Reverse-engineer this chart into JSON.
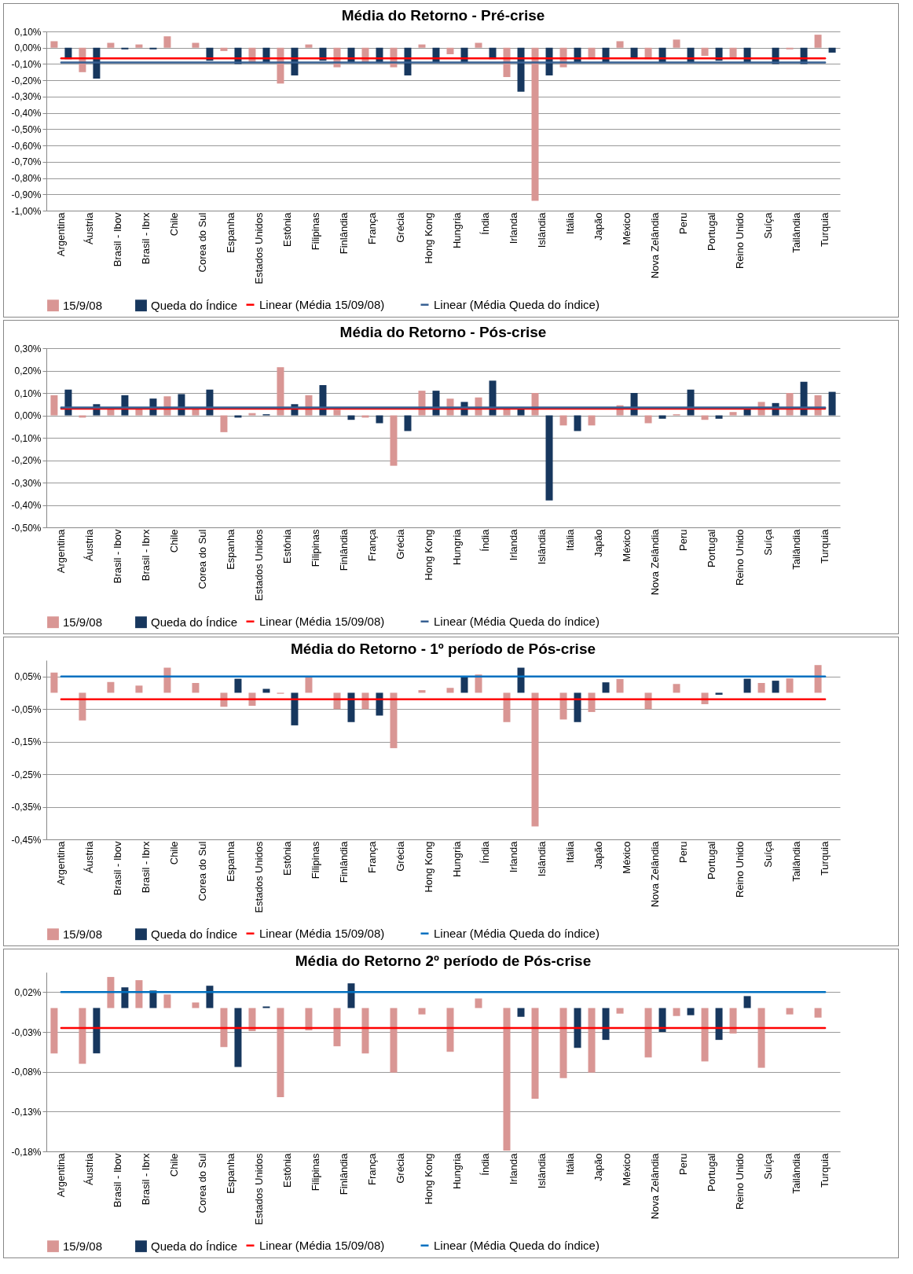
{
  "chart_data": [
    {
      "type": "bar",
      "title": "Média do Retorno - Pré-crise",
      "categories": [
        "Argentina",
        "Áustria",
        "Brasil - Ibov",
        "Brasil - Ibrx",
        "Chile",
        "Corea do Sul",
        "Espanha",
        "Estados Unidos",
        "Estônia",
        "Filipinas",
        "Finlândia",
        "França",
        "Grécia",
        "Hong Kong",
        "Hungria",
        "Índia",
        "Irlanda",
        "Islândia",
        "Itália",
        "Japão",
        "México",
        "Nova Zelândia",
        "Peru",
        "Portugal",
        "Reino Unido",
        "Suíça",
        "Tailândia",
        "Turquia"
      ],
      "series": [
        {
          "name": "15/9/08",
          "color": "#d99694",
          "values": [
            0.04,
            -0.15,
            0.03,
            0.02,
            0.07,
            0.03,
            -0.02,
            -0.09,
            -0.22,
            0.02,
            -0.12,
            -0.09,
            -0.12,
            0.02,
            -0.04,
            0.03,
            -0.18,
            -0.94,
            -0.12,
            -0.07,
            0.04,
            -0.07,
            0.05,
            -0.05,
            -0.06,
            0,
            -0.01,
            0.08
          ]
        },
        {
          "name": "Queda do Índice",
          "color": "#17375e",
          "values": [
            -0.07,
            -0.19,
            -0.01,
            -0.01,
            0,
            -0.08,
            -0.1,
            -0.09,
            -0.17,
            -0.08,
            -0.09,
            -0.09,
            -0.17,
            -0.09,
            -0.09,
            -0.07,
            -0.27,
            -0.17,
            -0.09,
            -0.09,
            -0.06,
            -0.09,
            -0.09,
            -0.08,
            -0.09,
            -0.1,
            -0.1,
            -0.03
          ]
        },
        {
          "name": "Linear (Média 15/09/08)",
          "type": "line",
          "color": "#ff0000",
          "values": [
            -0.065,
            -0.065,
            -0.065,
            -0.065,
            -0.065,
            -0.065,
            -0.065,
            -0.065,
            -0.065,
            -0.065,
            -0.065,
            -0.065,
            -0.065,
            -0.065,
            -0.065,
            -0.065,
            -0.065,
            -0.065,
            -0.065,
            -0.065,
            -0.065,
            -0.065,
            -0.065,
            -0.065,
            -0.065,
            -0.065,
            -0.065,
            -0.065
          ]
        },
        {
          "name": "Linear (Média Queda do índice)",
          "type": "line",
          "color": "#376092",
          "values": [
            -0.09,
            -0.09,
            -0.09,
            -0.09,
            -0.09,
            -0.09,
            -0.09,
            -0.09,
            -0.09,
            -0.09,
            -0.09,
            -0.09,
            -0.09,
            -0.09,
            -0.09,
            -0.09,
            -0.09,
            -0.09,
            -0.09,
            -0.09,
            -0.09,
            -0.09,
            -0.09,
            -0.09,
            -0.09,
            -0.09,
            -0.09,
            -0.09
          ]
        }
      ],
      "ylim": [
        -1.0,
        0.1
      ],
      "yticks": [
        {
          "value": 0.1,
          "label": "0,10%"
        },
        {
          "value": 0,
          "label": "0,00%"
        },
        {
          "value": -0.1,
          "label": "-0,10%"
        },
        {
          "value": -0.2,
          "label": "-0,20%"
        },
        {
          "value": -0.3,
          "label": "-0,30%"
        },
        {
          "value": -0.4,
          "label": "-0,40%"
        },
        {
          "value": -0.5,
          "label": "-0,50%"
        },
        {
          "value": -0.6,
          "label": "-0,60%"
        },
        {
          "value": -0.7,
          "label": "-0,70%"
        },
        {
          "value": -0.8,
          "label": "-0,80%"
        },
        {
          "value": -0.9,
          "label": "-0,90%"
        },
        {
          "value": -1.0,
          "label": "-1,00%"
        }
      ],
      "grid": "y",
      "legend": "bottom"
    },
    {
      "type": "bar",
      "title": "Média do Retorno - Pós-crise",
      "categories": [
        "Argentina",
        "Áustria",
        "Brasil - Ibov",
        "Brasil - Ibrx",
        "Chile",
        "Corea do Sul",
        "Espanha",
        "Estados Unidos",
        "Estônia",
        "Filipinas",
        "Finlândia",
        "França",
        "Grécia",
        "Hong Kong",
        "Hungria",
        "Índia",
        "Irlanda",
        "Islândia",
        "Itália",
        "Japão",
        "México",
        "Nova Zelândia",
        "Peru",
        "Portugal",
        "Reino Unido",
        "Suíça",
        "Tailândia",
        "Turquia"
      ],
      "series": [
        {
          "name": "15/9/08",
          "color": "#d99694",
          "values": [
            0.09,
            -0.01,
            0.03,
            0.03,
            0.085,
            0.03,
            -0.075,
            0.01,
            0.215,
            0.09,
            0.025,
            -0.01,
            -0.225,
            0.11,
            0.075,
            0.08,
            0.03,
            0.1,
            -0.045,
            -0.045,
            0.045,
            -0.035,
            0.005,
            -0.02,
            0.015,
            0.06,
            0.1,
            0.09
          ]
        },
        {
          "name": "Queda do Índice",
          "color": "#17375e",
          "values": [
            0.115,
            0.05,
            0.09,
            0.075,
            0.095,
            0.115,
            -0.01,
            0.005,
            0.05,
            0.135,
            -0.02,
            -0.035,
            -0.07,
            0.11,
            0.06,
            0.155,
            0.03,
            -0.38,
            -0.07,
            0,
            0.1,
            -0.015,
            0.115,
            -0.015,
            0.03,
            0.055,
            0.15,
            0.105
          ]
        },
        {
          "name": "Linear (Média 15/09/08)",
          "type": "line",
          "color": "#ff0000",
          "values": [
            0.03,
            0.03,
            0.03,
            0.03,
            0.03,
            0.03,
            0.03,
            0.03,
            0.03,
            0.03,
            0.03,
            0.03,
            0.03,
            0.03,
            0.03,
            0.03,
            0.03,
            0.03,
            0.03,
            0.03,
            0.03,
            0.03,
            0.03,
            0.03,
            0.03,
            0.03,
            0.03,
            0.03
          ]
        },
        {
          "name": "Linear (Média Queda do índice)",
          "type": "line",
          "color": "#376092",
          "values": [
            0.035,
            0.035,
            0.035,
            0.035,
            0.035,
            0.035,
            0.035,
            0.035,
            0.035,
            0.035,
            0.035,
            0.035,
            0.035,
            0.035,
            0.035,
            0.035,
            0.035,
            0.035,
            0.035,
            0.035,
            0.035,
            0.035,
            0.035,
            0.035,
            0.035,
            0.035,
            0.035,
            0.035
          ]
        }
      ],
      "ylim": [
        -0.5,
        0.3
      ],
      "yticks": [
        {
          "value": 0.3,
          "label": "0,30%"
        },
        {
          "value": 0.2,
          "label": "0,20%"
        },
        {
          "value": 0.1,
          "label": "0,10%"
        },
        {
          "value": 0,
          "label": "0,00%"
        },
        {
          "value": -0.1,
          "label": "-0,10%"
        },
        {
          "value": -0.2,
          "label": "-0,20%"
        },
        {
          "value": -0.3,
          "label": "-0,30%"
        },
        {
          "value": -0.4,
          "label": "-0,40%"
        },
        {
          "value": -0.5,
          "label": "-0,50%"
        }
      ],
      "grid": "y",
      "legend": "bottom"
    },
    {
      "type": "bar",
      "title": "Média do Retorno - 1º período de Pós-crise",
      "categories": [
        "Argentina",
        "Áustria",
        "Brasil - Ibov",
        "Brasil - Ibrx",
        "Chile",
        "Corea do Sul",
        "Espanha",
        "Estados Unidos",
        "Estônia",
        "Filipinas",
        "Finlândia",
        "França",
        "Grécia",
        "Hong Kong",
        "Hungria",
        "Índia",
        "Irlanda",
        "Islândia",
        "Itália",
        "Japão",
        "México",
        "Nova Zelândia",
        "Peru",
        "Portugal",
        "Reino Unido",
        "Suíça",
        "Tailândia",
        "Turquia"
      ],
      "series": [
        {
          "name": "15/9/08",
          "color": "#d99694",
          "values": [
            0.062,
            -0.085,
            0.033,
            0.022,
            0.077,
            0.03,
            -0.043,
            -0.04,
            -0.003,
            0.05,
            -0.05,
            -0.05,
            -0.17,
            0.008,
            0.015,
            0.056,
            -0.09,
            -0.41,
            -0.082,
            -0.059,
            0.042,
            -0.05,
            0.027,
            -0.035,
            null,
            0.03,
            0.044,
            0.085
          ]
        },
        {
          "name": "Queda do Índice",
          "color": "#17375e",
          "values": [
            null,
            null,
            null,
            null,
            null,
            null,
            0.043,
            0.012,
            -0.1,
            null,
            -0.09,
            -0.07,
            null,
            null,
            0.047,
            null,
            0.077,
            null,
            -0.09,
            0.032,
            null,
            0,
            null,
            -0.006,
            0.043,
            0.037,
            null,
            null
          ]
        },
        {
          "name": "Linear (Média 15/09/08)",
          "type": "line",
          "color": "#ff0000",
          "values": [
            -0.02,
            -0.02,
            -0.02,
            -0.02,
            -0.02,
            -0.02,
            -0.02,
            -0.02,
            -0.02,
            -0.02,
            -0.02,
            -0.02,
            -0.02,
            -0.02,
            -0.02,
            -0.02,
            -0.02,
            -0.02,
            -0.02,
            -0.02,
            -0.02,
            -0.02,
            -0.02,
            -0.02,
            -0.02,
            -0.02,
            -0.02,
            -0.02
          ]
        },
        {
          "name": "Linear (Média Queda do índice)",
          "type": "line",
          "color": "#0070c0",
          "values": [
            0.05,
            0.05,
            0.05,
            0.05,
            0.05,
            0.05,
            0.05,
            0.05,
            0.05,
            0.05,
            0.05,
            0.05,
            0.05,
            0.05,
            0.05,
            0.05,
            0.05,
            0.05,
            0.05,
            0.05,
            0.05,
            0.05,
            0.05,
            0.05,
            0.05,
            0.05,
            0.05,
            0.05
          ]
        }
      ],
      "ylim": [
        -0.45,
        0.1
      ],
      "yticks": [
        {
          "value": 0.05,
          "label": "0,05%"
        },
        {
          "value": -0.05,
          "label": "-0,05%"
        },
        {
          "value": -0.15,
          "label": "-0,15%"
        },
        {
          "value": -0.25,
          "label": "-0,25%"
        },
        {
          "value": -0.35,
          "label": "-0,35%"
        },
        {
          "value": -0.45,
          "label": "-0,45%"
        }
      ],
      "grid": "y",
      "legend": "bottom"
    },
    {
      "type": "bar",
      "title": "Média do Retorno 2º período de Pós-crise",
      "categories": [
        "Argentina",
        "Áustria",
        "Brasil - Ibov",
        "Brasil - Ibrx",
        "Chile",
        "Corea do Sul",
        "Espanha",
        "Estados Unidos",
        "Estônia",
        "Filipinas",
        "Finlândia",
        "França",
        "Grécia",
        "Hong Kong",
        "Hungria",
        "Índia",
        "Irlanda",
        "Islândia",
        "Itália",
        "Japão",
        "México",
        "Nova Zelândia",
        "Peru",
        "Portugal",
        "Reino Unido",
        "Suíça",
        "Tailândia",
        "Turquia"
      ],
      "series": [
        {
          "name": "15/9/08",
          "color": "#d99694",
          "values": [
            -0.057,
            -0.07,
            0.039,
            0.035,
            0.017,
            0.007,
            -0.049,
            -0.029,
            -0.112,
            -0.028,
            -0.048,
            -0.057,
            -0.081,
            -0.008,
            -0.055,
            0.012,
            -0.179,
            -0.114,
            -0.088,
            -0.081,
            -0.007,
            -0.062,
            -0.01,
            -0.067,
            -0.032,
            -0.075,
            -0.008,
            -0.012
          ]
        },
        {
          "name": "Queda do Índice",
          "color": "#17375e",
          "values": [
            null,
            -0.057,
            0.026,
            0.022,
            null,
            0.028,
            -0.074,
            0.002,
            null,
            null,
            0.031,
            0,
            null,
            0,
            null,
            null,
            -0.011,
            null,
            -0.05,
            -0.04,
            null,
            -0.03,
            -0.009,
            -0.04,
            0.015,
            null,
            null,
            null
          ]
        },
        {
          "name": "Linear (Média 15/09/08)",
          "type": "line",
          "color": "#ff0000",
          "values": [
            -0.025,
            -0.025,
            -0.025,
            -0.025,
            -0.025,
            -0.025,
            -0.025,
            -0.025,
            -0.025,
            -0.025,
            -0.025,
            -0.025,
            -0.025,
            -0.025,
            -0.025,
            -0.025,
            -0.025,
            -0.025,
            -0.025,
            -0.025,
            -0.025,
            -0.025,
            -0.025,
            -0.025,
            -0.025,
            -0.025,
            -0.025,
            -0.025
          ]
        },
        {
          "name": "Linear (Média Queda do índice)",
          "type": "line",
          "color": "#0070c0",
          "values": [
            0.02,
            0.02,
            0.02,
            0.02,
            0.02,
            0.02,
            0.02,
            0.02,
            0.02,
            0.02,
            0.02,
            0.02,
            0.02,
            0.02,
            0.02,
            0.02,
            0.02,
            0.02,
            0.02,
            0.02,
            0.02,
            0.02,
            0.02,
            0.02,
            0.02,
            0.02,
            0.02,
            0.02
          ]
        }
      ],
      "ylim": [
        -0.18,
        0.045
      ],
      "yticks": [
        {
          "value": 0.02,
          "label": "0,02%"
        },
        {
          "value": -0.03,
          "label": "-0,03%"
        },
        {
          "value": -0.08,
          "label": "-0,08%"
        },
        {
          "value": -0.13,
          "label": "-0,13%"
        },
        {
          "value": -0.18,
          "label": "-0,18%"
        }
      ],
      "grid": "y",
      "legend": "bottom"
    }
  ]
}
